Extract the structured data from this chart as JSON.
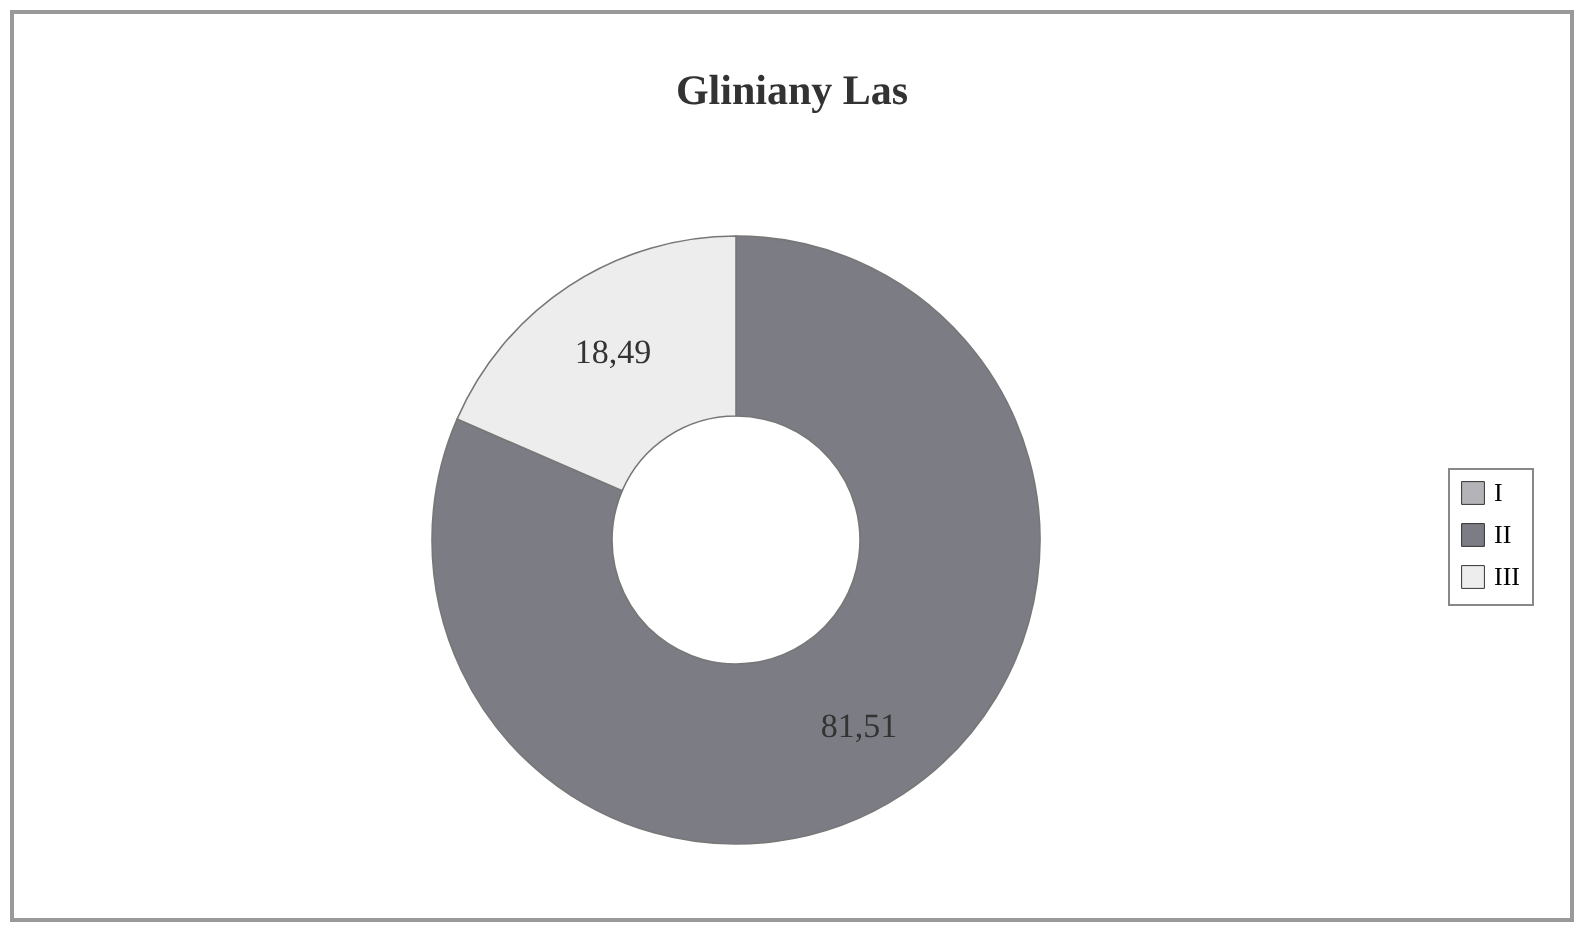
{
  "chart_data": {
    "type": "donut",
    "title": "Gliniany Las",
    "categories": [
      "I",
      "II",
      "III"
    ],
    "values": [
      0,
      81.51,
      18.49
    ],
    "colors": [
      "#b4b4b8",
      "#7c7c84",
      "#ededed"
    ],
    "value_labels": [
      null,
      "81,51",
      "18,49"
    ],
    "legend": "right"
  }
}
